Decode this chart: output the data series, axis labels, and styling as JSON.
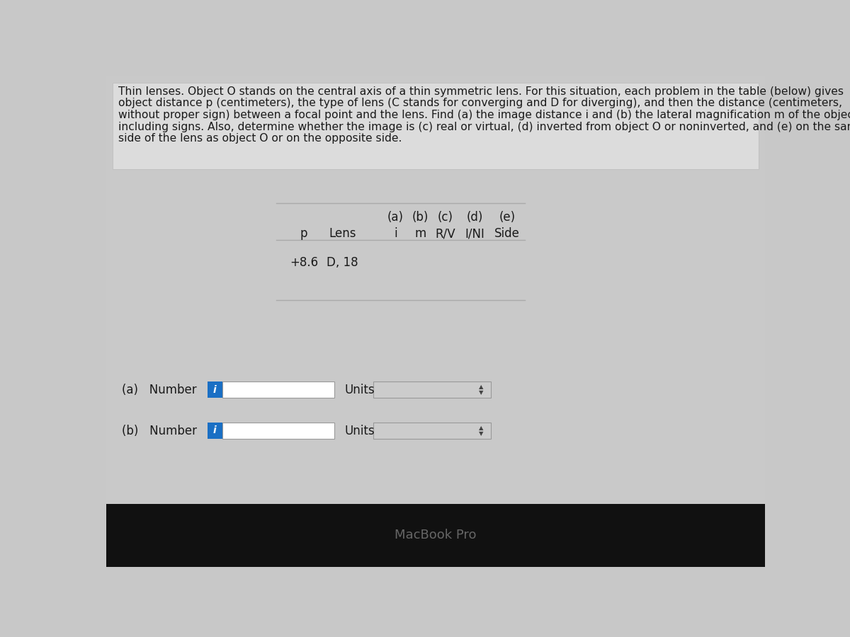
{
  "bg_color": "#c8c8c8",
  "content_bg": "#cbcbcb",
  "desc_area_bg": "#d6d6d6",
  "black_bar_bg": "#111111",
  "white_bg": "#ffffff",
  "blue_color": "#1a6fc4",
  "input_box_bg": "#ffffff",
  "units_box_bg": "#cccccc",
  "line_color": "#aaaaaa",
  "text_color": "#1a1a1a",
  "macbook_color": "#666666",
  "description_lines": [
    "Thin lenses. Object O stands on the central axis of a thin symmetric lens. For this situation, each problem in the table (below) gives",
    "object distance p (centimeters), the type of lens (C stands for converging and D for diverging), and then the distance (centimeters,",
    "without proper sign) between a focal point and the lens. Find (a) the image distance i and (b) the lateral magnification m of the object,",
    "including signs. Also, determine whether the image is (c) real or virtual, (d) inverted from object O or noninverted, and (e) on the same",
    "side of the lens as object O or on the opposite side."
  ],
  "col1_headers": [
    "(a)",
    "(b)",
    "(c)",
    "(d)",
    "(e)"
  ],
  "col2_headers": [
    "p",
    "Lens",
    "i",
    "m",
    "R/V",
    "I/NI",
    "Side"
  ],
  "data_p": "+8.6",
  "data_lens": "D, 18",
  "input_label_a": "(a)   Number",
  "input_label_b": "(b)   Number",
  "units_label": "Units",
  "macbook_text": "MacBook Pro",
  "desc_font_size": 11.2,
  "table_font_size": 12,
  "input_font_size": 12,
  "macbook_font_size": 13
}
